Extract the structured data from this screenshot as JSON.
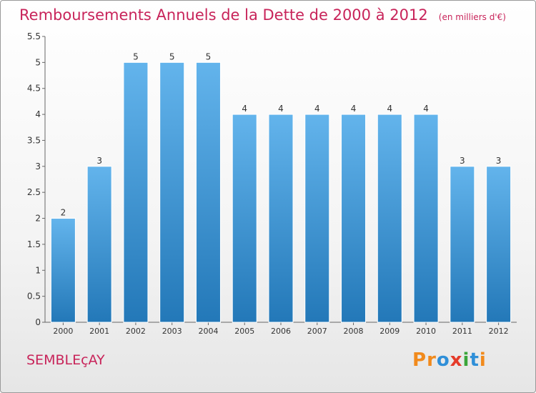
{
  "title": "Remboursements Annuels de la Dette de 2000 à 2012",
  "unit_note": "(en milliers d'€)",
  "commune": "SEMBLEçAY",
  "logo": {
    "letters": [
      "P",
      "r",
      "o",
      "x",
      "i",
      "t",
      "i"
    ],
    "colors": [
      "#f18a1c",
      "#f18a1c",
      "#2f8fd8",
      "#e53b2a",
      "#3aa53a",
      "#2f8fd8",
      "#f18a1c"
    ]
  },
  "colors": {
    "bar_light": "#63b4ec",
    "bar_dark": "#2378b8",
    "accent": "#c8245a"
  },
  "chart_data": {
    "type": "bar",
    "categories": [
      "2000",
      "2001",
      "2002",
      "2003",
      "2004",
      "2005",
      "2006",
      "2007",
      "2008",
      "2009",
      "2010",
      "2011",
      "2012"
    ],
    "values": [
      2,
      3,
      5,
      5,
      5,
      4,
      4,
      4,
      4,
      4,
      4,
      3,
      3
    ],
    "y_ticks": [
      "0",
      "0.5",
      "1",
      "1.5",
      "2",
      "2.5",
      "3",
      "3.5",
      "4",
      "4.5",
      "5",
      "5.5"
    ],
    "ylim": [
      0,
      5.5
    ],
    "grid": false,
    "legend": "none"
  }
}
